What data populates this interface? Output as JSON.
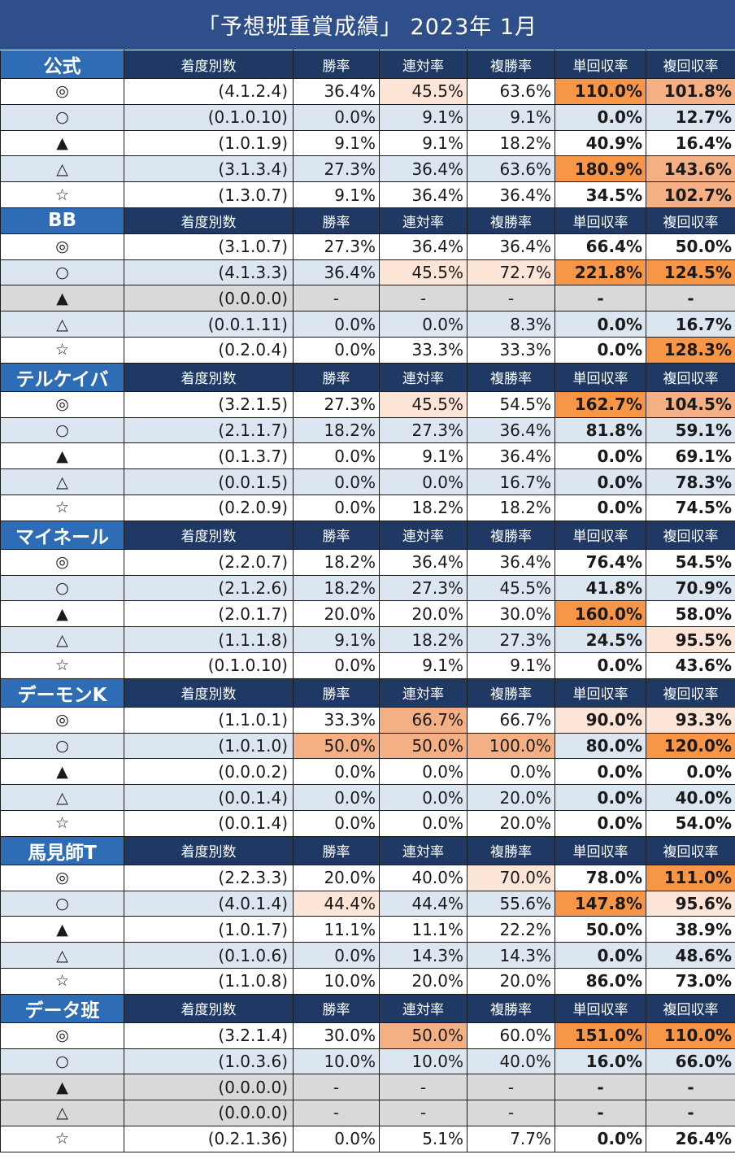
{
  "title": "「予想班重賞成績」 2023年  1月",
  "columns": [
    "着度別数",
    "勝率",
    "連対率",
    "複勝率",
    "単回収率",
    "複回収率"
  ],
  "groups": [
    {
      "name": "公式",
      "rows": [
        {
          "mark": "◎",
          "counts": "(4.1.2.4)",
          "vals": [
            "36.4%",
            "45.5%",
            "63.6%",
            "110.0%",
            "101.8%"
          ],
          "hl": [
            0,
            1,
            0,
            3,
            2
          ]
        },
        {
          "mark": "○",
          "counts": "(0.1.0.10)",
          "vals": [
            "0.0%",
            "9.1%",
            "9.1%",
            "0.0%",
            "12.7%"
          ],
          "hl": [
            0,
            0,
            0,
            0,
            0
          ]
        },
        {
          "mark": "▲",
          "counts": "(1.0.1.9)",
          "vals": [
            "9.1%",
            "9.1%",
            "18.2%",
            "40.9%",
            "16.4%"
          ],
          "hl": [
            0,
            0,
            0,
            0,
            0
          ]
        },
        {
          "mark": "△",
          "counts": "(3.1.3.4)",
          "vals": [
            "27.3%",
            "36.4%",
            "63.6%",
            "180.9%",
            "143.6%"
          ],
          "hl": [
            0,
            0,
            0,
            3,
            2
          ]
        },
        {
          "mark": "☆",
          "counts": "(1.3.0.7)",
          "vals": [
            "9.1%",
            "36.4%",
            "36.4%",
            "34.5%",
            "102.7%"
          ],
          "hl": [
            0,
            0,
            0,
            0,
            2
          ]
        }
      ]
    },
    {
      "name": "BB",
      "rows": [
        {
          "mark": "◎",
          "counts": "(3.1.0.7)",
          "vals": [
            "27.3%",
            "36.4%",
            "36.4%",
            "66.4%",
            "50.0%"
          ],
          "hl": [
            0,
            0,
            0,
            0,
            0
          ]
        },
        {
          "mark": "○",
          "counts": "(4.1.3.3)",
          "vals": [
            "36.4%",
            "45.5%",
            "72.7%",
            "221.8%",
            "124.5%"
          ],
          "hl": [
            0,
            1,
            1,
            3,
            3
          ]
        },
        {
          "mark": "▲",
          "counts": "(0.0.0.0)",
          "vals": [
            "-",
            "-",
            "-",
            "-",
            "-"
          ],
          "hl": [
            0,
            0,
            0,
            0,
            0
          ],
          "gray": true
        },
        {
          "mark": "△",
          "counts": "(0.0.1.11)",
          "vals": [
            "0.0%",
            "0.0%",
            "8.3%",
            "0.0%",
            "16.7%"
          ],
          "hl": [
            0,
            0,
            0,
            0,
            0
          ]
        },
        {
          "mark": "☆",
          "counts": "(0.2.0.4)",
          "vals": [
            "0.0%",
            "33.3%",
            "33.3%",
            "0.0%",
            "128.3%"
          ],
          "hl": [
            0,
            0,
            0,
            0,
            3
          ]
        }
      ]
    },
    {
      "name": "テルケイバ",
      "rows": [
        {
          "mark": "◎",
          "counts": "(3.2.1.5)",
          "vals": [
            "27.3%",
            "45.5%",
            "54.5%",
            "162.7%",
            "104.5%"
          ],
          "hl": [
            0,
            1,
            0,
            3,
            2
          ]
        },
        {
          "mark": "○",
          "counts": "(2.1.1.7)",
          "vals": [
            "18.2%",
            "27.3%",
            "36.4%",
            "81.8%",
            "59.1%"
          ],
          "hl": [
            0,
            0,
            0,
            0,
            0
          ]
        },
        {
          "mark": "▲",
          "counts": "(0.1.3.7)",
          "vals": [
            "0.0%",
            "9.1%",
            "36.4%",
            "0.0%",
            "69.1%"
          ],
          "hl": [
            0,
            0,
            0,
            0,
            0
          ]
        },
        {
          "mark": "△",
          "counts": "(0.0.1.5)",
          "vals": [
            "0.0%",
            "0.0%",
            "16.7%",
            "0.0%",
            "78.3%"
          ],
          "hl": [
            0,
            0,
            0,
            0,
            0
          ]
        },
        {
          "mark": "☆",
          "counts": "(0.2.0.9)",
          "vals": [
            "0.0%",
            "18.2%",
            "18.2%",
            "0.0%",
            "74.5%"
          ],
          "hl": [
            0,
            0,
            0,
            0,
            0
          ]
        }
      ]
    },
    {
      "name": "マイネール",
      "rows": [
        {
          "mark": "◎",
          "counts": "(2.2.0.7)",
          "vals": [
            "18.2%",
            "36.4%",
            "36.4%",
            "76.4%",
            "54.5%"
          ],
          "hl": [
            0,
            0,
            0,
            0,
            0
          ]
        },
        {
          "mark": "○",
          "counts": "(2.1.2.6)",
          "vals": [
            "18.2%",
            "27.3%",
            "45.5%",
            "41.8%",
            "70.9%"
          ],
          "hl": [
            0,
            0,
            0,
            0,
            0
          ]
        },
        {
          "mark": "▲",
          "counts": "(2.0.1.7)",
          "vals": [
            "20.0%",
            "20.0%",
            "30.0%",
            "160.0%",
            "58.0%"
          ],
          "hl": [
            0,
            0,
            0,
            3,
            0
          ]
        },
        {
          "mark": "△",
          "counts": "(1.1.1.8)",
          "vals": [
            "9.1%",
            "18.2%",
            "27.3%",
            "24.5%",
            "95.5%"
          ],
          "hl": [
            0,
            0,
            0,
            0,
            1
          ]
        },
        {
          "mark": "☆",
          "counts": "(0.1.0.10)",
          "vals": [
            "0.0%",
            "9.1%",
            "9.1%",
            "0.0%",
            "43.6%"
          ],
          "hl": [
            0,
            0,
            0,
            0,
            0
          ]
        }
      ]
    },
    {
      "name": "デーモンK",
      "rows": [
        {
          "mark": "◎",
          "counts": "(1.1.0.1)",
          "vals": [
            "33.3%",
            "66.7%",
            "66.7%",
            "90.0%",
            "93.3%"
          ],
          "hl": [
            0,
            2,
            0,
            1,
            1
          ]
        },
        {
          "mark": "○",
          "counts": "(1.0.1.0)",
          "vals": [
            "50.0%",
            "50.0%",
            "100.0%",
            "80.0%",
            "120.0%"
          ],
          "hl": [
            2,
            2,
            2,
            0,
            3
          ]
        },
        {
          "mark": "▲",
          "counts": "(0.0.0.2)",
          "vals": [
            "0.0%",
            "0.0%",
            "0.0%",
            "0.0%",
            "0.0%"
          ],
          "hl": [
            0,
            0,
            0,
            0,
            0
          ]
        },
        {
          "mark": "△",
          "counts": "(0.0.1.4)",
          "vals": [
            "0.0%",
            "0.0%",
            "20.0%",
            "0.0%",
            "40.0%"
          ],
          "hl": [
            0,
            0,
            0,
            0,
            0
          ]
        },
        {
          "mark": "☆",
          "counts": "(0.0.1.4)",
          "vals": [
            "0.0%",
            "0.0%",
            "20.0%",
            "0.0%",
            "54.0%"
          ],
          "hl": [
            0,
            0,
            0,
            0,
            0
          ]
        }
      ]
    },
    {
      "name": "馬見師T",
      "rows": [
        {
          "mark": "◎",
          "counts": "(2.2.3.3)",
          "vals": [
            "20.0%",
            "40.0%",
            "70.0%",
            "78.0%",
            "111.0%"
          ],
          "hl": [
            0,
            0,
            1,
            0,
            3
          ]
        },
        {
          "mark": "○",
          "counts": "(4.0.1.4)",
          "vals": [
            "44.4%",
            "44.4%",
            "55.6%",
            "147.8%",
            "95.6%"
          ],
          "hl": [
            1,
            0,
            0,
            3,
            1
          ]
        },
        {
          "mark": "▲",
          "counts": "(1.0.1.7)",
          "vals": [
            "11.1%",
            "11.1%",
            "22.2%",
            "50.0%",
            "38.9%"
          ],
          "hl": [
            0,
            0,
            0,
            0,
            0
          ]
        },
        {
          "mark": "△",
          "counts": "(0.1.0.6)",
          "vals": [
            "0.0%",
            "14.3%",
            "14.3%",
            "0.0%",
            "48.6%"
          ],
          "hl": [
            0,
            0,
            0,
            0,
            0
          ]
        },
        {
          "mark": "☆",
          "counts": "(1.1.0.8)",
          "vals": [
            "10.0%",
            "20.0%",
            "20.0%",
            "86.0%",
            "73.0%"
          ],
          "hl": [
            0,
            0,
            0,
            0,
            0
          ]
        }
      ]
    },
    {
      "name": "データ班",
      "rows": [
        {
          "mark": "◎",
          "counts": "(3.2.1.4)",
          "vals": [
            "30.0%",
            "50.0%",
            "60.0%",
            "151.0%",
            "110.0%"
          ],
          "hl": [
            0,
            2,
            0,
            3,
            3
          ]
        },
        {
          "mark": "○",
          "counts": "(1.0.3.6)",
          "vals": [
            "10.0%",
            "10.0%",
            "40.0%",
            "16.0%",
            "66.0%"
          ],
          "hl": [
            0,
            0,
            0,
            0,
            0
          ]
        },
        {
          "mark": "▲",
          "counts": "(0.0.0.0)",
          "vals": [
            "-",
            "-",
            "-",
            "-",
            "-"
          ],
          "hl": [
            0,
            0,
            0,
            0,
            0
          ],
          "gray": true
        },
        {
          "mark": "△",
          "counts": "(0.0.0.0)",
          "vals": [
            "-",
            "-",
            "-",
            "-",
            "-"
          ],
          "hl": [
            0,
            0,
            0,
            0,
            0
          ],
          "gray": true
        },
        {
          "mark": "☆",
          "counts": "(0.2.1.36)",
          "vals": [
            "0.0%",
            "5.1%",
            "7.7%",
            "0.0%",
            "26.4%"
          ],
          "hl": [
            0,
            0,
            0,
            0,
            0
          ]
        }
      ]
    }
  ]
}
